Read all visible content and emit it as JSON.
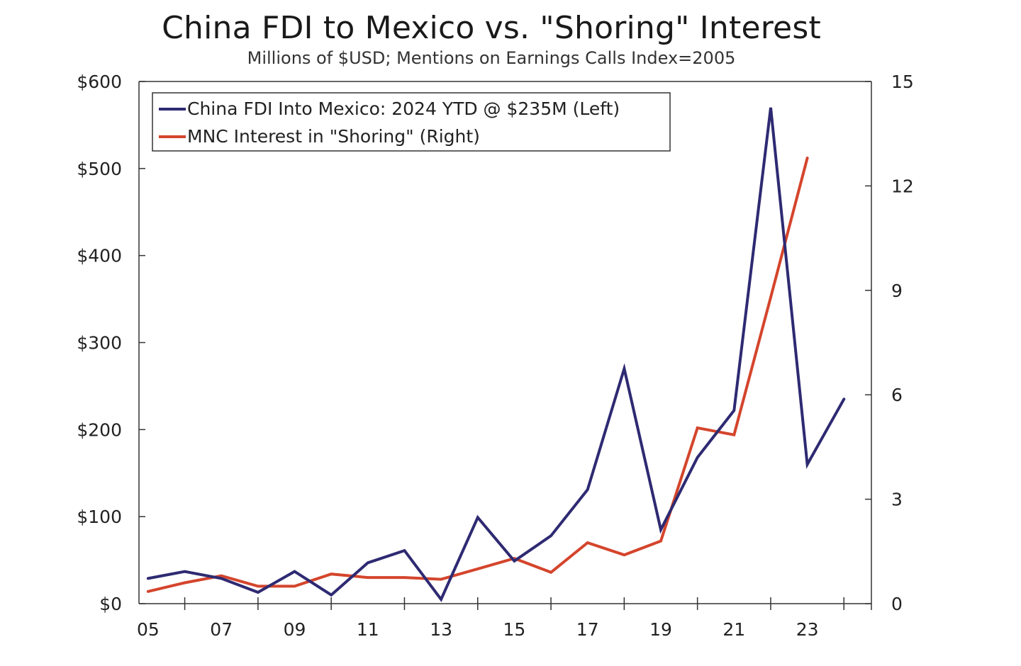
{
  "title": "China FDI to Mexico vs. \"Shoring\" Interest",
  "subtitle": "Millions of $USD; Mentions on Earnings Calls Index=2005",
  "colors": {
    "fdi": "#2e2a72",
    "shoring": "#d4452c",
    "axis": "#333333"
  },
  "chart_data": {
    "type": "line",
    "title": "China FDI to Mexico vs. \"Shoring\" Interest",
    "subtitle": "Millions of $USD; Mentions on Earnings Calls Index=2005",
    "x_tick_labels": [
      "05",
      "07",
      "09",
      "11",
      "13",
      "15",
      "17",
      "19",
      "21",
      "23"
    ],
    "x_tick_years": [
      2005,
      2007,
      2009,
      2011,
      2013,
      2015,
      2017,
      2019,
      2021,
      2023
    ],
    "xlim": [
      2004.75,
      2024.75
    ],
    "y_left": {
      "lim": [
        0,
        600
      ],
      "ticks": [
        0,
        100,
        200,
        300,
        400,
        500,
        600
      ],
      "tick_labels": [
        "$0",
        "$100",
        "$200",
        "$300",
        "$400",
        "$500",
        "$600"
      ]
    },
    "y_right": {
      "lim": [
        0,
        15
      ],
      "ticks": [
        0,
        3,
        6,
        9,
        12,
        15
      ],
      "tick_labels": [
        "0",
        "3",
        "6",
        "9",
        "12",
        "15"
      ]
    },
    "grid": false,
    "legend_position": "top-left",
    "series": [
      {
        "name": "China FDI Into Mexico: 2024 YTD @ $235M (Left)",
        "axis": "left",
        "color": "#2e2a72",
        "x": [
          2005,
          2006,
          2007,
          2008,
          2009,
          2010,
          2011,
          2012,
          2013,
          2014,
          2015,
          2016,
          2017,
          2018,
          2019,
          2020,
          2021,
          2022,
          2023,
          2024
        ],
        "values": [
          29,
          37,
          29,
          13,
          37,
          10,
          47,
          61,
          5,
          99,
          49,
          78,
          131,
          270,
          85,
          168,
          222,
          570,
          160,
          235
        ]
      },
      {
        "name": "MNC Interest in \"Shoring\" (Right)",
        "axis": "right",
        "color": "#d4452c",
        "x": [
          2005,
          2006,
          2007,
          2008,
          2009,
          2010,
          2011,
          2012,
          2013,
          2014,
          2015,
          2016,
          2017,
          2018,
          2019,
          2020,
          2021,
          2022,
          2023
        ],
        "values": [
          0.35,
          0.6,
          0.8,
          0.5,
          0.5,
          0.85,
          0.75,
          0.75,
          0.7,
          1.0,
          1.3,
          0.9,
          1.75,
          1.4,
          1.8,
          5.05,
          4.85,
          8.8,
          12.8
        ]
      }
    ]
  }
}
